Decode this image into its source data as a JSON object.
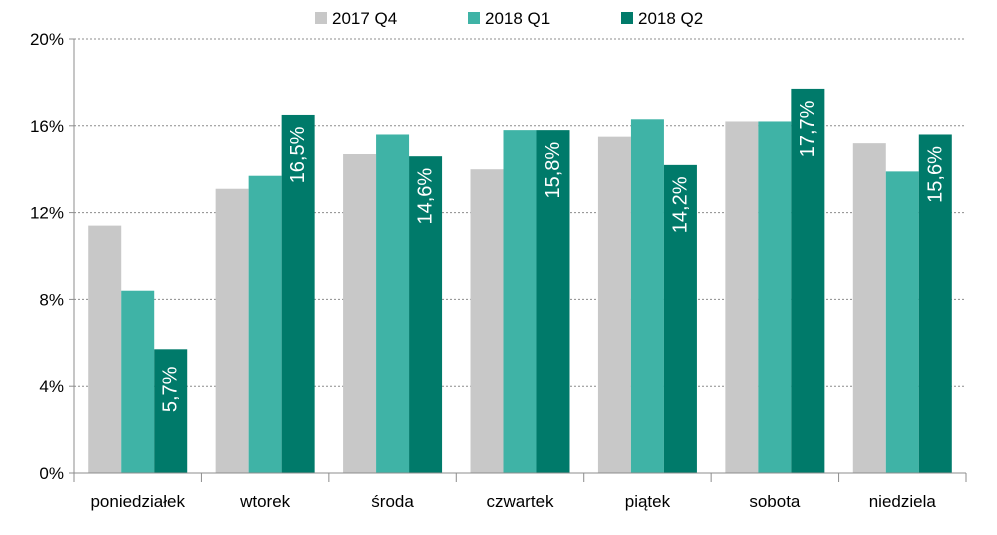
{
  "colors": {
    "2017 Q4": "#c8c8c8",
    "2018 Q1": "#3fb3a6",
    "2018 Q2": "#007a6a",
    "grid": "#8c8c8c",
    "axis": "#8c8c8c",
    "text": "#000000",
    "data_label": "#ffffff"
  },
  "chart_data": {
    "type": "bar",
    "title": "",
    "xlabel": "",
    "ylabel": "",
    "legend_position": "top-center",
    "grid": true,
    "ylim": [
      0,
      20
    ],
    "y_unit": "%",
    "y_ticks": [
      0,
      4,
      8,
      12,
      16,
      20
    ],
    "y_tick_labels": [
      "0%",
      "4%",
      "8%",
      "12%",
      "16%",
      "20%"
    ],
    "categories": [
      "poniedziałek",
      "wtorek",
      "środa",
      "czwartek",
      "piątek",
      "sobota",
      "niedziela"
    ],
    "series": [
      {
        "name": "2017 Q4",
        "values": [
          11.4,
          13.1,
          14.7,
          14.0,
          15.5,
          16.2,
          15.2
        ]
      },
      {
        "name": "2018 Q1",
        "values": [
          8.4,
          13.7,
          15.6,
          15.8,
          16.3,
          16.2,
          13.9
        ]
      },
      {
        "name": "2018 Q2",
        "values": [
          5.7,
          16.5,
          14.6,
          15.8,
          14.2,
          17.7,
          15.6
        ],
        "data_labels": [
          "5,7%",
          "16,5%",
          "14,6%",
          "15,8%",
          "14,2%",
          "17,7%",
          "15,6%"
        ]
      }
    ]
  }
}
